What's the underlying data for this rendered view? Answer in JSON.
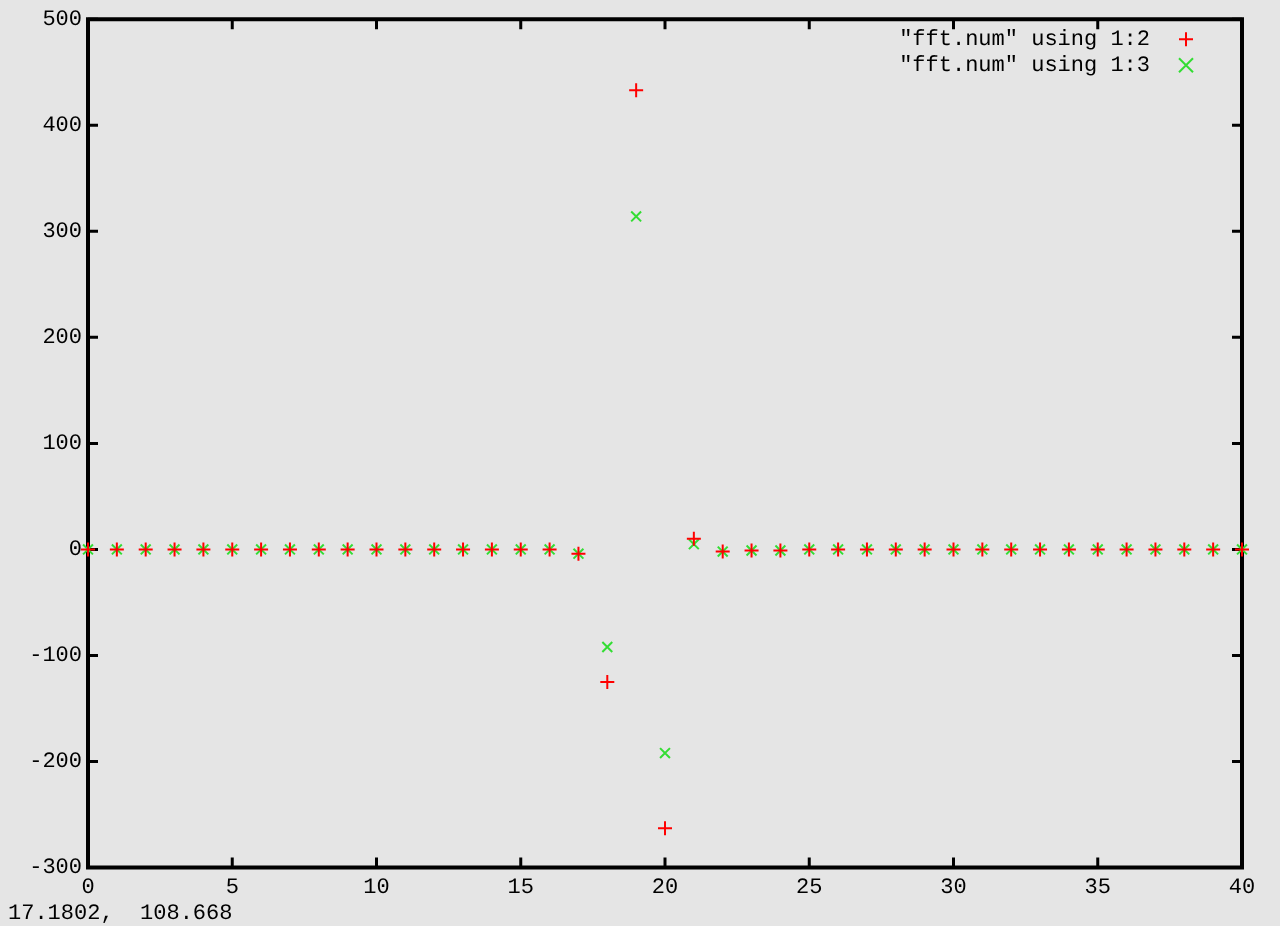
{
  "chart_data": {
    "type": "scatter",
    "x": [
      0,
      1,
      2,
      3,
      4,
      5,
      6,
      7,
      8,
      9,
      10,
      11,
      12,
      13,
      14,
      15,
      16,
      17,
      18,
      19,
      20,
      21,
      22,
      23,
      24,
      25,
      26,
      27,
      28,
      29,
      30,
      31,
      32,
      33,
      34,
      35,
      36,
      37,
      38,
      39,
      40
    ],
    "series": [
      {
        "name": "\"fft.num\" using 1:2",
        "color": "#ff0000",
        "marker": "cross",
        "values": [
          0,
          0,
          0,
          0,
          0,
          0,
          0,
          0,
          0,
          0,
          0,
          0,
          0,
          0,
          0,
          0,
          0,
          -4,
          -125,
          433,
          -263,
          10,
          -2,
          -1,
          -1,
          0,
          0,
          0,
          0,
          0,
          0,
          0,
          0,
          0,
          0,
          0,
          0,
          0,
          0,
          0,
          0
        ]
      },
      {
        "name": "\"fft.num\" using 1:3",
        "color": "#33dd33",
        "marker": "x",
        "values": [
          0,
          0,
          0,
          0,
          0,
          0,
          0,
          0,
          0,
          0,
          0,
          0,
          0,
          0,
          0,
          0,
          0,
          -4,
          -92,
          314,
          -192,
          5,
          -2,
          -1,
          -1,
          0,
          0,
          0,
          0,
          0,
          0,
          0,
          0,
          0,
          0,
          0,
          0,
          0,
          0,
          0,
          0
        ]
      }
    ],
    "xlim": [
      0,
      40
    ],
    "xticks": [
      0,
      5,
      10,
      15,
      20,
      25,
      30,
      35,
      40
    ],
    "ylim": [
      -300,
      500
    ],
    "yticks": [
      -300,
      -200,
      -100,
      0,
      100,
      200,
      300,
      400,
      500
    ],
    "grid": false,
    "legend": "top right",
    "annotations": [
      "17.1802,  108.668"
    ]
  }
}
